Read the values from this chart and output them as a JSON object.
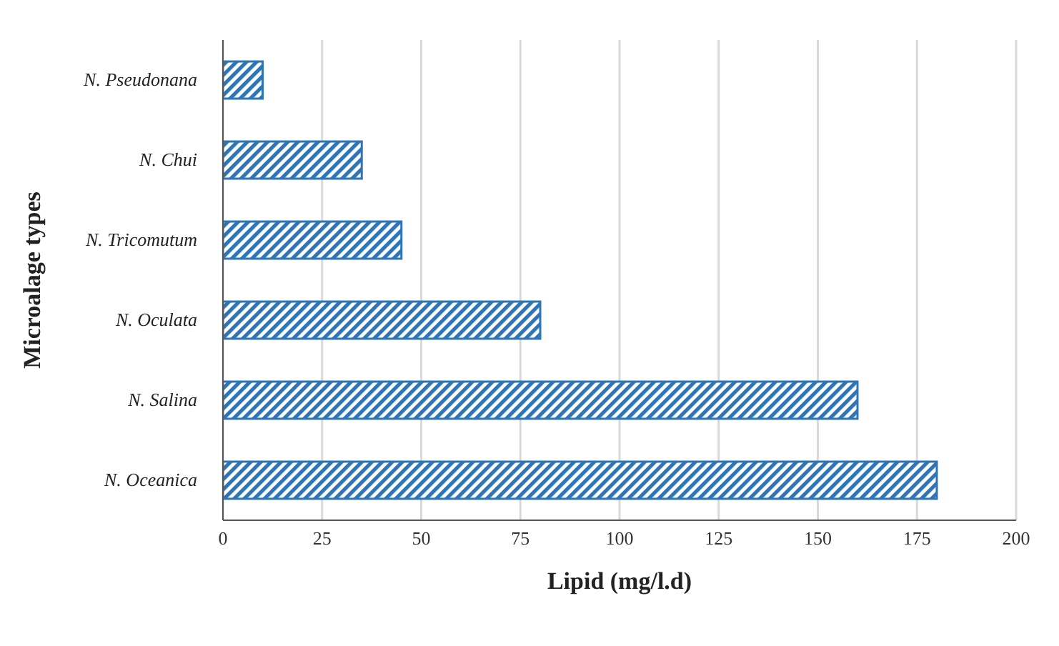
{
  "chart_data": {
    "type": "bar",
    "orientation": "horizontal",
    "categories": [
      "N. Pseudonana",
      "N. Chui",
      "N. Tricomutum",
      "N. Oculata",
      "N. Salina",
      "N. Oceanica"
    ],
    "values": [
      10,
      35,
      45,
      80,
      160,
      180
    ],
    "color": "#2e75b6",
    "xlabel": "Lipid  (mg/l.d)",
    "ylabel": "Microalage types",
    "xlim": [
      0,
      200
    ],
    "xticks": [
      0,
      25,
      50,
      75,
      100,
      125,
      150,
      175,
      200
    ],
    "grid": "x"
  }
}
